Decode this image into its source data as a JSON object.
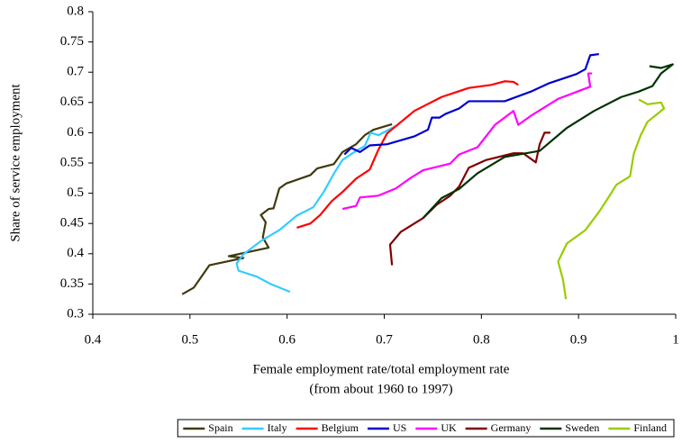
{
  "chart_data": {
    "type": "line",
    "y_label": "Share of service employment",
    "x_label": [
      "Female employment rate/total employment rate",
      "(from about 1960 to 1997)"
    ],
    "xlim": [
      0.4,
      1
    ],
    "xticks": [
      0.4,
      0.5,
      0.6,
      0.7,
      0.8,
      0.9,
      1
    ],
    "ylim": [
      0.3,
      0.8
    ],
    "yticks": [
      0.3,
      0.35,
      0.4,
      0.45,
      0.5,
      0.55,
      0.6,
      0.65,
      0.7,
      0.75,
      0.8
    ],
    "grid": false,
    "legend": "bottom",
    "series": [
      {
        "name": "Spain",
        "color": "#403a10",
        "x": [
          0.492,
          0.504,
          0.52,
          0.555,
          0.54,
          0.581,
          0.575,
          0.578,
          0.573,
          0.581,
          0.586,
          0.592,
          0.599,
          0.624,
          0.631,
          0.648,
          0.657,
          0.671,
          0.68,
          0.689,
          0.708
        ],
        "values": [
          0.333,
          0.344,
          0.381,
          0.393,
          0.396,
          0.41,
          0.427,
          0.452,
          0.464,
          0.474,
          0.475,
          0.508,
          0.516,
          0.53,
          0.541,
          0.548,
          0.568,
          0.581,
          0.596,
          0.605,
          0.614
        ]
      },
      {
        "name": "Italy",
        "color": "#33ccff",
        "x": [
          0.603,
          0.583,
          0.569,
          0.55,
          0.548,
          0.555,
          0.573,
          0.592,
          0.61,
          0.627,
          0.638,
          0.648,
          0.657,
          0.671,
          0.68,
          0.686,
          0.694,
          0.712
        ],
        "values": [
          0.337,
          0.35,
          0.362,
          0.372,
          0.384,
          0.399,
          0.421,
          0.439,
          0.463,
          0.477,
          0.503,
          0.532,
          0.555,
          0.57,
          0.578,
          0.6,
          0.596,
          0.611
        ]
      },
      {
        "name": "Belgium",
        "color": "#ff0000",
        "x": [
          0.61,
          0.624,
          0.634,
          0.646,
          0.657,
          0.671,
          0.685,
          0.694,
          0.703,
          0.731,
          0.759,
          0.787,
          0.81,
          0.824,
          0.833,
          0.838
        ],
        "values": [
          0.443,
          0.45,
          0.464,
          0.487,
          0.502,
          0.524,
          0.539,
          0.572,
          0.599,
          0.636,
          0.659,
          0.674,
          0.679,
          0.685,
          0.684,
          0.679
        ]
      },
      {
        "name": "US",
        "color": "#0000cc",
        "x": [
          0.659,
          0.666,
          0.675,
          0.685,
          0.703,
          0.731,
          0.745,
          0.749,
          0.757,
          0.763,
          0.777,
          0.787,
          0.824,
          0.851,
          0.87,
          0.898,
          0.907,
          0.912,
          0.921
        ],
        "values": [
          0.564,
          0.575,
          0.568,
          0.579,
          0.581,
          0.594,
          0.605,
          0.625,
          0.625,
          0.631,
          0.64,
          0.652,
          0.652,
          0.668,
          0.682,
          0.697,
          0.705,
          0.728,
          0.73
        ]
      },
      {
        "name": "UK",
        "color": "#ff00ff",
        "x": [
          0.657,
          0.671,
          0.675,
          0.694,
          0.712,
          0.726,
          0.74,
          0.768,
          0.777,
          0.796,
          0.814,
          0.833,
          0.838,
          0.851,
          0.879,
          0.912,
          0.91,
          0.914
        ],
        "values": [
          0.474,
          0.479,
          0.493,
          0.496,
          0.508,
          0.524,
          0.538,
          0.549,
          0.564,
          0.576,
          0.613,
          0.636,
          0.613,
          0.628,
          0.656,
          0.676,
          0.698,
          0.698
        ]
      },
      {
        "name": "Germany",
        "color": "#800000",
        "x": [
          0.708,
          0.706,
          0.717,
          0.74,
          0.754,
          0.768,
          0.777,
          0.787,
          0.805,
          0.833,
          0.843,
          0.856,
          0.86,
          0.865,
          0.871
        ],
        "values": [
          0.381,
          0.415,
          0.436,
          0.459,
          0.481,
          0.496,
          0.511,
          0.542,
          0.555,
          0.566,
          0.566,
          0.551,
          0.581,
          0.6,
          0.6
        ]
      },
      {
        "name": "Sweden",
        "color": "#003300",
        "x": [
          0.74,
          0.759,
          0.777,
          0.796,
          0.824,
          0.86,
          0.888,
          0.916,
          0.944,
          0.962,
          0.976,
          0.985,
          0.997,
          0.985,
          0.973
        ],
        "values": [
          0.459,
          0.492,
          0.507,
          0.533,
          0.56,
          0.57,
          0.608,
          0.636,
          0.659,
          0.668,
          0.677,
          0.698,
          0.713,
          0.707,
          0.71
        ]
      },
      {
        "name": "Finland",
        "color": "#99cc00",
        "x": [
          0.887,
          0.884,
          0.879,
          0.888,
          0.907,
          0.921,
          0.93,
          0.939,
          0.953,
          0.957,
          0.964,
          0.971,
          0.988,
          0.985,
          0.971,
          0.962
        ],
        "values": [
          0.325,
          0.357,
          0.387,
          0.417,
          0.439,
          0.469,
          0.491,
          0.514,
          0.528,
          0.566,
          0.596,
          0.618,
          0.64,
          0.65,
          0.647,
          0.655
        ]
      }
    ]
  }
}
